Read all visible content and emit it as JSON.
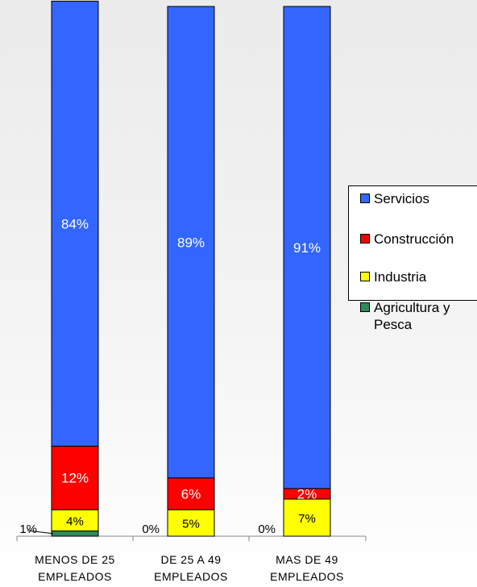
{
  "chart_data": {
    "type": "bar",
    "stacked": true,
    "categories": [
      "MENOS DE 25\nEMPLEADOS",
      "DE 25 A 49\nEMPLEADOS",
      "MAS DE 49\nEMPLEADOS"
    ],
    "series": [
      {
        "name": "Agricultura y Pesca",
        "color": "#2e8b57",
        "values": [
          1,
          0,
          0
        ],
        "labels": [
          "1%",
          "0%",
          "0%"
        ]
      },
      {
        "name": "Industria",
        "color": "#ffff00",
        "values": [
          4,
          5,
          7
        ],
        "labels": [
          "4%",
          "5%",
          "7%"
        ]
      },
      {
        "name": "Construcción",
        "color": "#ff0000",
        "values": [
          12,
          6,
          2
        ],
        "labels": [
          "12%",
          "6%",
          "2%"
        ]
      },
      {
        "name": "Servicios",
        "color": "#3366ff",
        "values": [
          84,
          89,
          91
        ],
        "labels": [
          "84%",
          "89%",
          "91%"
        ]
      }
    ],
    "ylim": [
      0,
      100
    ],
    "legend_position": "right",
    "grid": false
  },
  "legend": {
    "items": [
      "Servicios",
      "Construcción",
      "Industria",
      "Agricultura y\nPesca"
    ]
  }
}
